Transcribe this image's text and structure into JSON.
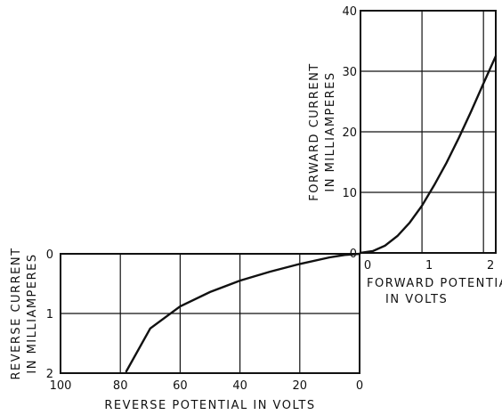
{
  "chart_data": [
    {
      "type": "line",
      "title": "",
      "xlabel": "FORWARD POTENTIAL IN VOLTS",
      "ylabel": [
        "FORWARD CURRENT",
        "IN MILLIAMPERES"
      ],
      "x_ticks": [
        "0",
        "1",
        "2"
      ],
      "y_ticks": [
        "0",
        "10",
        "20",
        "30",
        "40"
      ],
      "xlim": [
        0,
        2.2
      ],
      "ylim": [
        0,
        40
      ],
      "grid": true,
      "series": [
        {
          "x": [
            0,
            0.2,
            0.4,
            0.6,
            0.8,
            1.0,
            1.2,
            1.4,
            1.6,
            1.8,
            2.0,
            2.2
          ],
          "y": [
            0,
            0.3,
            1.2,
            2.8,
            5.0,
            7.8,
            11.2,
            14.9,
            19.0,
            23.4,
            28.0,
            32.5
          ]
        }
      ]
    },
    {
      "type": "line",
      "title": "",
      "xlabel": "REVERSE POTENTIAL IN VOLTS",
      "ylabel": [
        "REVERSE CURRENT",
        "IN MILLIAMPERES"
      ],
      "x_ticks": [
        "100",
        "80",
        "60",
        "40",
        "20",
        "0"
      ],
      "y_ticks": [
        "0",
        "1",
        "2"
      ],
      "xlim": [
        100,
        0
      ],
      "ylim": [
        0,
        2
      ],
      "y_inverted": true,
      "grid": true,
      "series": [
        {
          "x": [
            0,
            5,
            10,
            20,
            30,
            40,
            50,
            60,
            70,
            78
          ],
          "y": [
            0,
            0.02,
            0.06,
            0.17,
            0.3,
            0.45,
            0.64,
            0.88,
            1.25,
            1.97
          ]
        }
      ]
    }
  ]
}
